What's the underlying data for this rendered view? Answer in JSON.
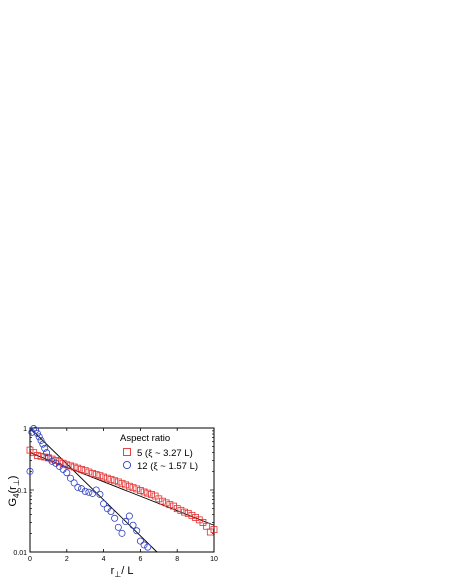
{
  "chart_data": {
    "type": "scatter",
    "xlabel": "r⊥/ L",
    "ylabel": "G4(r⊥)",
    "xlim": [
      0,
      10
    ],
    "ylim": [
      0.01,
      1
    ],
    "y_scale": "log",
    "x_ticks": [
      0,
      2,
      4,
      6,
      8,
      10
    ],
    "y_ticks": [
      0.01,
      0.1,
      1
    ],
    "y_tick_labels": [
      "0.01",
      "0.1",
      "1"
    ],
    "legend": {
      "title": "Aspect ratio",
      "placement": "top-right",
      "entries": [
        "5 (ξ ~ 3.27 L)",
        "12 (ξ ~ 1.57 L)"
      ]
    },
    "series": [
      {
        "marker": "square",
        "color": "#e03030",
        "x": [
          0.0,
          0.2,
          0.4,
          0.6,
          0.8,
          1.0,
          1.2,
          1.4,
          1.6,
          1.8,
          2.0,
          2.2,
          2.4,
          2.6,
          2.8,
          3.0,
          3.2,
          3.4,
          3.6,
          3.8,
          4.0,
          4.2,
          4.4,
          4.6,
          4.8,
          5.0,
          5.2,
          5.4,
          5.6,
          5.8,
          6.0,
          6.2,
          6.4,
          6.6,
          6.8,
          7.0,
          7.2,
          7.4,
          7.6,
          7.8,
          8.0,
          8.2,
          8.4,
          8.6,
          8.8,
          9.0,
          9.2,
          9.4,
          9.6,
          9.8,
          10.0
        ],
        "y": [
          0.44,
          0.4,
          0.36,
          0.35,
          0.34,
          0.33,
          0.315,
          0.3,
          0.285,
          0.27,
          0.255,
          0.245,
          0.235,
          0.225,
          0.215,
          0.205,
          0.195,
          0.185,
          0.177,
          0.17,
          0.162,
          0.155,
          0.148,
          0.141,
          0.135,
          0.128,
          0.121,
          0.115,
          0.109,
          0.104,
          0.098,
          0.093,
          0.089,
          0.085,
          0.08,
          0.072,
          0.066,
          0.062,
          0.058,
          0.055,
          0.05,
          0.047,
          0.044,
          0.042,
          0.039,
          0.036,
          0.033,
          0.03,
          0.026,
          0.021,
          0.023
        ]
      },
      {
        "marker": "circle",
        "color": "#3040c0",
        "x": [
          0.0,
          0.1,
          0.2,
          0.3,
          0.4,
          0.5,
          0.6,
          0.7,
          0.8,
          0.9,
          1.0,
          1.2,
          1.4,
          1.6,
          1.8,
          2.0,
          2.2,
          2.4,
          2.6,
          2.8,
          3.0,
          3.2,
          3.4,
          3.6,
          3.8,
          4.0,
          4.2,
          4.4,
          4.6,
          4.8,
          5.0,
          5.2,
          5.4,
          5.6,
          5.8,
          6.0,
          6.2,
          6.4
        ],
        "y": [
          0.2,
          0.85,
          0.98,
          0.92,
          0.82,
          0.72,
          0.63,
          0.55,
          0.47,
          0.4,
          0.33,
          0.29,
          0.27,
          0.24,
          0.215,
          0.19,
          0.155,
          0.13,
          0.11,
          0.105,
          0.095,
          0.092,
          0.088,
          0.1,
          0.085,
          0.06,
          0.05,
          0.045,
          0.035,
          0.025,
          0.02,
          0.031,
          0.038,
          0.027,
          0.022,
          0.015,
          0.013,
          0.012
        ]
      }
    ],
    "fit_lines": [
      {
        "series": 0,
        "x": [
          0,
          10
        ],
        "y": [
          0.4,
          0.027
        ]
      },
      {
        "series": 1,
        "x": [
          0,
          6.9
        ],
        "y": [
          1.0,
          0.01
        ]
      }
    ]
  }
}
